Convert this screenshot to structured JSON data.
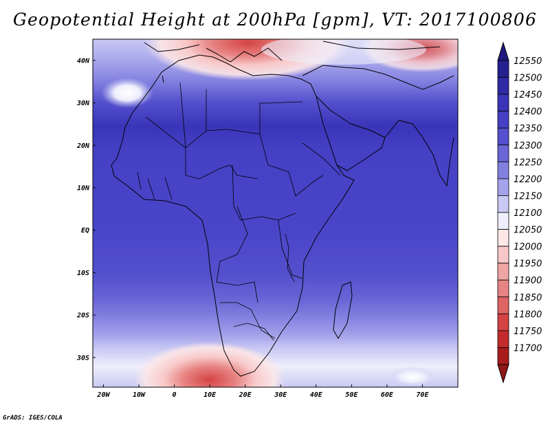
{
  "title": "Geopotential Height at 200hPa [gpm], VT: 2017100806",
  "credit": "GrADS: IGES/COLA",
  "map": {
    "lon_ticks": [
      {
        "label": "20W",
        "lon": -20
      },
      {
        "label": "10W",
        "lon": -10
      },
      {
        "label": "0",
        "lon": 0
      },
      {
        "label": "10E",
        "lon": 10
      },
      {
        "label": "20E",
        "lon": 20
      },
      {
        "label": "30E",
        "lon": 30
      },
      {
        "label": "40E",
        "lon": 40
      },
      {
        "label": "50E",
        "lon": 50
      },
      {
        "label": "60E",
        "lon": 60
      },
      {
        "label": "70E",
        "lon": 70
      }
    ],
    "lat_ticks": [
      {
        "label": "40N",
        "lat": 40
      },
      {
        "label": "30N",
        "lat": 30
      },
      {
        "label": "20N",
        "lat": 20
      },
      {
        "label": "10N",
        "lat": 10
      },
      {
        "label": "EQ",
        "lat": 0
      },
      {
        "label": "10S",
        "lat": -10
      },
      {
        "label": "20S",
        "lat": -20
      },
      {
        "label": "30S",
        "lat": -30
      }
    ]
  },
  "colorbar": {
    "levels": [
      "12550",
      "12500",
      "12450",
      "12400",
      "12350",
      "12300",
      "12250",
      "12200",
      "12150",
      "12100",
      "12050",
      "12000",
      "11950",
      "11900",
      "11850",
      "11800",
      "11750",
      "11700"
    ],
    "colors": [
      "#25208f",
      "#3029a6",
      "#3a35b8",
      "#4540c4",
      "#5550cd",
      "#6a66d6",
      "#8381e0",
      "#a3a2ea",
      "#c9c9f4",
      "#eeeefc",
      "#fde7e7",
      "#f8c8c8",
      "#f0a5a5",
      "#e88383",
      "#df6464",
      "#d44444",
      "#c32c2c",
      "#a91c1c"
    ],
    "top_arrow_color": "#1e1a80",
    "bottom_arrow_color": "#8f1717"
  }
}
